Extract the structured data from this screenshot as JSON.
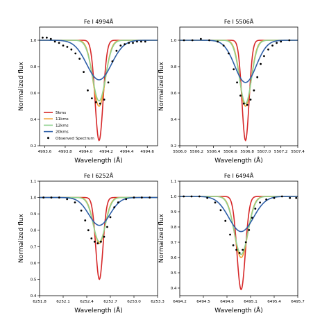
{
  "chart_data": [
    {
      "type": "line",
      "title": "Fe I 4994Å",
      "xlabel": "Wavelength (Å)",
      "ylabel": "Normalized flux",
      "xlim": [
        4993.55,
        4994.7
      ],
      "ylim": [
        0.2,
        1.1
      ],
      "xticks": [
        "4993.6",
        "4993.8",
        "4994.0",
        "4994.2",
        "4994.4",
        "4994.6"
      ],
      "yticks": [
        "0.2",
        "0.4",
        "0.6",
        "0.8",
        "1.0"
      ],
      "center": 4994.13,
      "legend": {
        "position": "lower-left",
        "entries": [
          "5kms",
          "11kms",
          "12kms",
          "20kms",
          "Observed Spectrum"
        ]
      },
      "series": [
        {
          "name": "5kms",
          "color": "#d62728",
          "line_depth": 0.76,
          "line_width": 0.055
        },
        {
          "name": "11kms",
          "color": "#f0a030",
          "line_depth": 0.5,
          "line_width": 0.085
        },
        {
          "name": "12kms",
          "color": "#8fd18f",
          "line_depth": 0.46,
          "line_width": 0.09
        },
        {
          "name": "20kms",
          "color": "#2e5fa8",
          "line_depth": 0.3,
          "line_width": 0.17
        }
      ],
      "observed": {
        "name": "Observed Spectrum",
        "x": [
          4993.58,
          4993.62,
          4993.66,
          4993.7,
          4993.74,
          4993.78,
          4993.82,
          4993.86,
          4993.9,
          4993.94,
          4993.98,
          4994.02,
          4994.06,
          4994.1,
          4994.14,
          4994.18,
          4994.22,
          4994.26,
          4994.3,
          4994.34,
          4994.38,
          4994.42,
          4994.46,
          4994.5,
          4994.54,
          4994.58
        ],
        "y": [
          1.02,
          1.02,
          1.01,
          0.99,
          0.98,
          0.96,
          0.95,
          0.93,
          0.9,
          0.86,
          0.76,
          0.62,
          0.56,
          0.53,
          0.52,
          0.55,
          0.68,
          0.84,
          0.92,
          0.96,
          0.97,
          0.98,
          0.98,
          0.99,
          0.99,
          0.99
        ]
      }
    },
    {
      "type": "line",
      "title": "Fe I 5506Å",
      "xlabel": "Wavelength (Å)",
      "ylabel": "Normalized flux",
      "xlim": [
        5506.0,
        5507.4
      ],
      "ylim": [
        0.2,
        1.1
      ],
      "xticks": [
        "5506.0",
        "5506.2",
        "5506.4",
        "5506.6",
        "5506.8",
        "5507.0",
        "5507.2",
        "5507.4"
      ],
      "yticks": [
        "0.2",
        "0.4",
        "0.6",
        "0.8",
        "1.0"
      ],
      "center": 5506.78,
      "series": [
        {
          "name": "5kms",
          "color": "#d62728",
          "line_depth": 0.76,
          "line_width": 0.06
        },
        {
          "name": "11kms",
          "color": "#f0a030",
          "line_depth": 0.5,
          "line_width": 0.095
        },
        {
          "name": "12kms",
          "color": "#8fd18f",
          "line_depth": 0.48,
          "line_width": 0.1
        },
        {
          "name": "20kms",
          "color": "#2e5fa8",
          "line_depth": 0.32,
          "line_width": 0.18
        }
      ],
      "observed": {
        "name": "Observed Spectrum",
        "x": [
          5506.05,
          5506.15,
          5506.25,
          5506.35,
          5506.45,
          5506.52,
          5506.58,
          5506.64,
          5506.68,
          5506.72,
          5506.76,
          5506.8,
          5506.84,
          5506.88,
          5506.92,
          5506.96,
          5507.0,
          5507.05,
          5507.1,
          5507.15,
          5507.2,
          5507.3
        ],
        "y": [
          1.0,
          1.0,
          1.01,
          1.0,
          0.99,
          0.96,
          0.9,
          0.78,
          0.68,
          0.58,
          0.52,
          0.51,
          0.55,
          0.62,
          0.72,
          0.82,
          0.88,
          0.93,
          0.96,
          0.98,
          0.99,
          1.0
        ]
      }
    },
    {
      "type": "line",
      "title": "Fe I 6252Å",
      "xlabel": "Wavelength (Å)",
      "ylabel": "Normalized flux",
      "xlim": [
        6251.8,
        6253.3
      ],
      "ylim": [
        0.4,
        1.1
      ],
      "xticks": [
        "6251.8",
        "6252.1",
        "6252.4",
        "6252.7",
        "6253.0",
        "6253.3"
      ],
      "yticks": [
        "0.4",
        "0.5",
        "0.6",
        "0.7",
        "0.8",
        "0.9",
        "1.0",
        "1.1"
      ],
      "center": 6252.56,
      "series": [
        {
          "name": "5kms",
          "color": "#d62728",
          "line_depth": 0.5,
          "line_width": 0.065
        },
        {
          "name": "11kms",
          "color": "#f0a030",
          "line_depth": 0.28,
          "line_width": 0.105
        },
        {
          "name": "12kms",
          "color": "#8fd18f",
          "line_depth": 0.27,
          "line_width": 0.11
        },
        {
          "name": "20kms",
          "color": "#2e5fa8",
          "line_depth": 0.17,
          "line_width": 0.19
        }
      ],
      "observed": {
        "name": "Observed Spectrum",
        "x": [
          6251.85,
          6251.95,
          6252.05,
          6252.15,
          6252.25,
          6252.33,
          6252.38,
          6252.42,
          6252.46,
          6252.5,
          6252.54,
          6252.58,
          6252.62,
          6252.66,
          6252.7,
          6252.75,
          6252.8,
          6252.9,
          6253.0,
          6253.1,
          6253.2
        ],
        "y": [
          1.0,
          1.0,
          1.0,
          0.99,
          0.97,
          0.92,
          0.86,
          0.8,
          0.75,
          0.73,
          0.72,
          0.73,
          0.76,
          0.82,
          0.88,
          0.94,
          0.97,
          0.99,
          1.0,
          1.0,
          1.0
        ]
      }
    },
    {
      "type": "line",
      "title": "Fe I 6494Å",
      "xlabel": "Wavelength (Å)",
      "ylabel": "Normalized flux",
      "xlim": [
        6494.2,
        6495.7
      ],
      "ylim": [
        0.35,
        1.1
      ],
      "xticks": [
        "6494.2",
        "6494.5",
        "6494.8",
        "6495.1",
        "6495.4",
        "6495.7"
      ],
      "yticks": [
        "0.4",
        "0.5",
        "0.6",
        "0.7",
        "0.8",
        "0.9",
        "1.0",
        "1.1"
      ],
      "center": 6494.98,
      "series": [
        {
          "name": "5kms",
          "color": "#d62728",
          "line_depth": 0.61,
          "line_width": 0.075
        },
        {
          "name": "11kms",
          "color": "#f0a030",
          "line_depth": 0.4,
          "line_width": 0.12
        },
        {
          "name": "12kms",
          "color": "#8fd18f",
          "line_depth": 0.38,
          "line_width": 0.125
        },
        {
          "name": "20kms",
          "color": "#2e5fa8",
          "line_depth": 0.23,
          "line_width": 0.22
        }
      ],
      "observed": {
        "name": "Observed Spectrum",
        "x": [
          6494.25,
          6494.35,
          6494.45,
          6494.55,
          6494.65,
          6494.72,
          6494.78,
          6494.84,
          6494.88,
          6494.92,
          6494.96,
          6495.0,
          6495.04,
          6495.08,
          6495.12,
          6495.16,
          6495.22,
          6495.3,
          6495.4,
          6495.5,
          6495.6,
          6495.68
        ],
        "y": [
          1.0,
          1.0,
          1.0,
          0.99,
          0.96,
          0.91,
          0.84,
          0.75,
          0.68,
          0.65,
          0.63,
          0.65,
          0.7,
          0.78,
          0.86,
          0.92,
          0.96,
          0.98,
          0.99,
          1.0,
          0.99,
          0.99
        ]
      }
    }
  ]
}
